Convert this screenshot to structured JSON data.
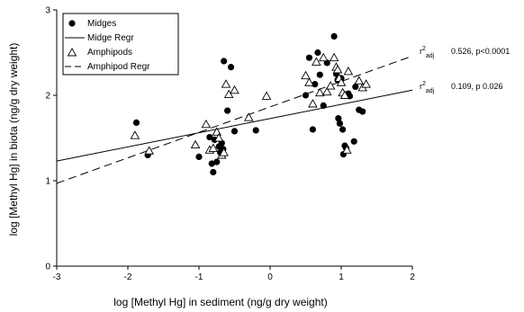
{
  "chart_data": {
    "type": "scatter",
    "xlabel": "log [Methyl Hg] in sediment (ng/g dry weight)",
    "ylabel": "log [Methyl Hg] in biota (ng/g dry weight)",
    "xlim": [
      -3,
      2
    ],
    "ylim": [
      0,
      3
    ],
    "x_ticks": [
      -3,
      -2,
      -1,
      0,
      1,
      2
    ],
    "y_ticks": [
      0,
      1,
      2,
      3
    ],
    "grid": false,
    "legend_position": "top-left",
    "series": [
      {
        "name": "Midges",
        "marker": "filled-circle",
        "color": "#000000",
        "x": [
          -1.88,
          -1.72,
          -1.0,
          -0.85,
          -0.82,
          -0.8,
          -0.78,
          -0.75,
          -0.72,
          -0.7,
          -0.68,
          -0.66,
          -0.65,
          -0.6,
          -0.55,
          -0.5,
          -0.2,
          0.5,
          0.55,
          0.6,
          0.63,
          0.67,
          0.7,
          0.75,
          0.8,
          0.9,
          0.93,
          0.95,
          0.96,
          0.98,
          1.0,
          1.02,
          1.03,
          1.05,
          1.07,
          1.1,
          1.12,
          1.18,
          1.2,
          1.25,
          1.3
        ],
        "y": [
          1.68,
          1.3,
          1.28,
          1.51,
          1.2,
          1.1,
          1.48,
          1.22,
          1.4,
          1.33,
          1.44,
          1.37,
          2.4,
          1.82,
          2.33,
          1.58,
          1.59,
          2.0,
          2.44,
          1.6,
          2.13,
          2.5,
          2.24,
          1.88,
          2.38,
          2.69,
          2.25,
          2.18,
          1.73,
          1.67,
          2.2,
          1.6,
          1.31,
          1.41,
          1.38,
          2.02,
          1.99,
          1.46,
          2.1,
          1.83,
          1.81
        ]
      },
      {
        "name": "Amphipods",
        "marker": "open-triangle",
        "color": "#000000",
        "x": [
          -1.9,
          -1.7,
          -1.05,
          -0.9,
          -0.85,
          -0.8,
          -0.75,
          -0.72,
          -0.68,
          -0.65,
          -0.62,
          -0.58,
          -0.5,
          -0.3,
          -0.05,
          0.5,
          0.55,
          0.6,
          0.65,
          0.7,
          0.75,
          0.8,
          0.85,
          0.9,
          0.93,
          0.95,
          0.97,
          1.0,
          1.02,
          1.05,
          1.08,
          1.1,
          1.25,
          1.3,
          1.35
        ],
        "y": [
          1.53,
          1.35,
          1.42,
          1.66,
          1.36,
          1.38,
          1.57,
          1.5,
          1.3,
          1.33,
          2.13,
          2.01,
          2.06,
          1.74,
          1.99,
          2.23,
          2.15,
          1.9,
          2.39,
          2.03,
          2.44,
          2.04,
          2.11,
          2.44,
          2.33,
          2.3,
          2.2,
          2.15,
          2.03,
          2.0,
          1.36,
          2.28,
          2.17,
          2.09,
          2.13
        ]
      },
      {
        "name": "Midge Regr",
        "line": "solid",
        "x": [
          -3,
          2
        ],
        "y": [
          1.23,
          2.06
        ]
      },
      {
        "name": "Amphipod Regr",
        "line": "dashed",
        "x": [
          -3,
          2
        ],
        "y": [
          0.97,
          2.46
        ]
      }
    ],
    "annotations": [
      {
        "label": "r",
        "sup": "2",
        "sub": "adj",
        "value": "0.526, p<0.0001"
      },
      {
        "label": "r",
        "sup": "2",
        "sub": "adj",
        "value": "0.109, p  0.026"
      }
    ]
  }
}
